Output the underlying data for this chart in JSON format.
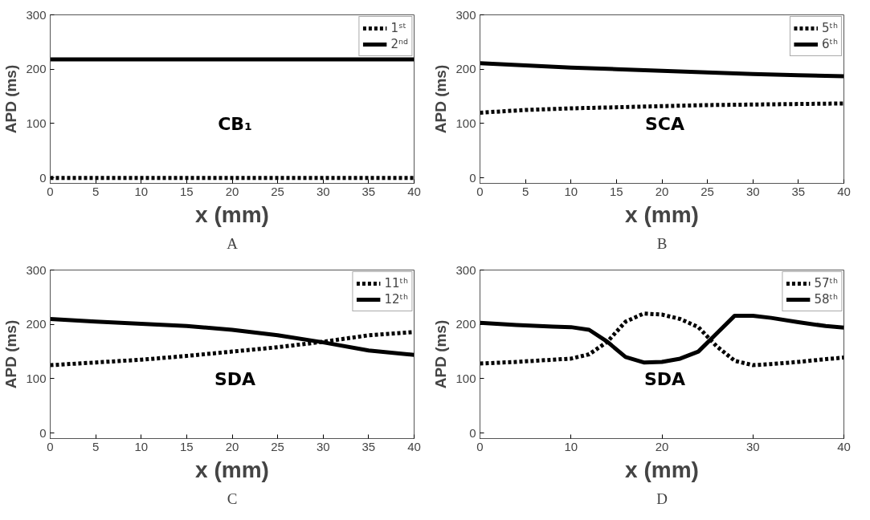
{
  "chart_data": [
    {
      "type": "line",
      "xlabel": "x (mm)",
      "ylabel": "APD (ms)",
      "x": [
        0,
        40
      ],
      "xlim": [
        0,
        40
      ],
      "ylim": [
        -10,
        300
      ],
      "xticks": [
        0,
        5,
        10,
        15,
        20,
        25,
        30,
        35,
        40
      ],
      "yticks": [
        0,
        100,
        200,
        300
      ],
      "grid": false,
      "legend": "top right",
      "annotations": [
        "CB₁",
        "A"
      ],
      "series": [
        {
          "name": "1ˢᵗ",
          "color": "#000000",
          "line_style": "dotted",
          "values": [
            0,
            0
          ]
        },
        {
          "name": "2ⁿᵈ",
          "color": "#000000",
          "line_style": "solid",
          "values": [
            218,
            218
          ]
        }
      ]
    },
    {
      "type": "line",
      "xlabel": "x (mm)",
      "ylabel": "APD (ms)",
      "x": [
        0,
        5,
        10,
        15,
        20,
        25,
        30,
        35,
        40
      ],
      "xlim": [
        0,
        40
      ],
      "ylim": [
        -10,
        300
      ],
      "xticks": [
        0,
        5,
        10,
        15,
        20,
        25,
        30,
        35,
        40
      ],
      "yticks": [
        0,
        100,
        200,
        300
      ],
      "grid": false,
      "legend": "top right",
      "annotations": [
        "SCA",
        "B"
      ],
      "series": [
        {
          "name": "5ᵗʰ",
          "color": "#000000",
          "line_style": "dotted",
          "values": [
            120,
            125,
            128,
            130,
            132,
            134,
            135,
            136,
            137
          ]
        },
        {
          "name": "6ᵗʰ",
          "color": "#000000",
          "line_style": "solid",
          "values": [
            211,
            207,
            203,
            200,
            197,
            194,
            191,
            189,
            187
          ]
        }
      ]
    },
    {
      "type": "line",
      "xlabel": "x (mm)",
      "ylabel": "APD (ms)",
      "x": [
        0,
        5,
        10,
        15,
        20,
        25,
        30,
        35,
        40
      ],
      "xlim": [
        0,
        40
      ],
      "ylim": [
        -10,
        300
      ],
      "xticks": [
        0,
        5,
        10,
        15,
        20,
        25,
        30,
        35,
        40
      ],
      "yticks": [
        0,
        100,
        200,
        300
      ],
      "grid": false,
      "legend": "top right",
      "annotations": [
        "SDA",
        "C"
      ],
      "series": [
        {
          "name": "11ᵗʰ",
          "color": "#000000",
          "line_style": "dotted",
          "values": [
            125,
            130,
            135,
            142,
            150,
            158,
            168,
            180,
            186
          ]
        },
        {
          "name": "12ᵗʰ",
          "color": "#000000",
          "line_style": "solid",
          "values": [
            210,
            205,
            201,
            197,
            190,
            180,
            167,
            152,
            144
          ]
        }
      ]
    },
    {
      "type": "line",
      "xlabel": "x (mm)",
      "ylabel": "APD (ms)",
      "x": [
        0,
        4,
        8,
        10,
        12,
        14,
        16,
        18,
        20,
        22,
        24,
        26,
        28,
        30,
        32,
        35,
        38,
        40
      ],
      "xlim": [
        0,
        40
      ],
      "ylim": [
        -10,
        300
      ],
      "xticks": [
        0,
        10,
        20,
        30,
        40
      ],
      "yticks": [
        0,
        100,
        200,
        300
      ],
      "grid": false,
      "legend": "top right",
      "annotations": [
        "SDA",
        "D"
      ],
      "series": [
        {
          "name": "57ᵗʰ",
          "color": "#000000",
          "line_style": "dotted",
          "values": [
            128,
            131,
            135,
            137,
            145,
            168,
            205,
            220,
            218,
            210,
            195,
            160,
            133,
            125,
            127,
            131,
            136,
            139
          ]
        },
        {
          "name": "58ᵗʰ",
          "color": "#000000",
          "line_style": "solid",
          "values": [
            203,
            199,
            196,
            195,
            190,
            168,
            140,
            130,
            131,
            137,
            150,
            183,
            216,
            216,
            212,
            204,
            197,
            194
          ]
        }
      ]
    }
  ]
}
